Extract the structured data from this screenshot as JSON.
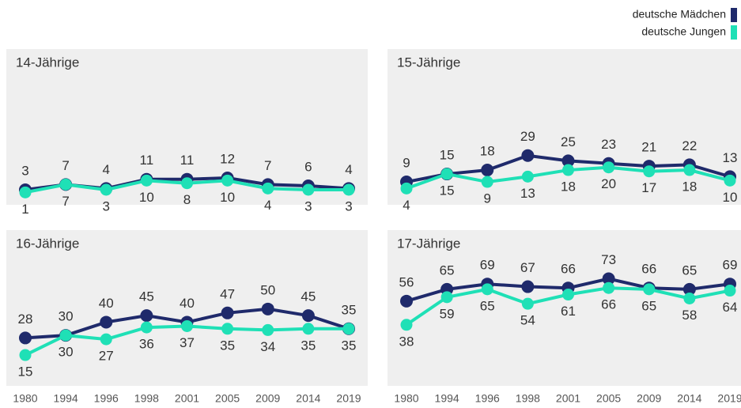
{
  "legend": [
    {
      "name": "deutsche Mädchen",
      "color": "#1f2a6b"
    },
    {
      "name": "deutsche Jungen",
      "color": "#1fe0b6"
    }
  ],
  "chart_data": [
    {
      "type": "line",
      "title": "14-Jährige",
      "ylim": [
        0,
        110
      ],
      "series": [
        {
          "values": [
            3,
            7,
            4,
            11,
            11,
            12,
            7,
            6,
            4
          ]
        },
        {
          "values": [
            1,
            7,
            3,
            10,
            8,
            10,
            4,
            3,
            3
          ]
        }
      ]
    },
    {
      "type": "line",
      "title": "15-Jährige",
      "ylim": [
        0,
        110
      ],
      "series": [
        {
          "values": [
            9,
            15,
            18,
            29,
            25,
            23,
            21,
            22,
            13
          ]
        },
        {
          "values": [
            4,
            15,
            9,
            13,
            18,
            20,
            17,
            18,
            10
          ]
        }
      ]
    },
    {
      "type": "line",
      "title": "16-Jährige",
      "ylim": [
        0,
        110
      ],
      "categories": [
        "1980",
        "1994",
        "1996",
        "1998",
        "2001",
        "2005",
        "2009",
        "2014",
        "2019"
      ],
      "series": [
        {
          "values": [
            28,
            30,
            40,
            45,
            40,
            47,
            50,
            45,
            35
          ]
        },
        {
          "values": [
            15,
            30,
            27,
            36,
            37,
            35,
            34,
            35,
            35
          ]
        }
      ]
    },
    {
      "type": "line",
      "title": "17-Jährige",
      "ylim": [
        0,
        110
      ],
      "categories": [
        "1980",
        "1994",
        "1996",
        "1998",
        "2001",
        "2005",
        "2009",
        "2014",
        "2019"
      ],
      "series": [
        {
          "values": [
            56,
            65,
            69,
            67,
            66,
            73,
            66,
            65,
            69
          ]
        },
        {
          "values": [
            38,
            59,
            65,
            54,
            61,
            66,
            65,
            58,
            64
          ]
        }
      ]
    }
  ]
}
